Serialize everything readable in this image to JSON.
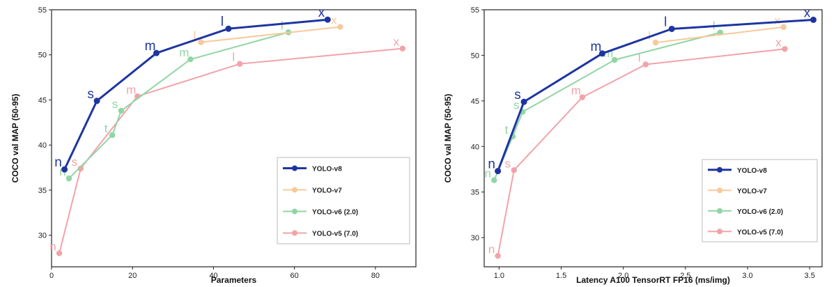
{
  "chart_data": [
    {
      "type": "line",
      "xlabel": "Parameters",
      "ylabel": "COCO val MAP (50-95)",
      "xlim": [
        0,
        90
      ],
      "ylim": [
        26.5,
        55
      ],
      "xticks": [
        "0",
        "20",
        "40",
        "60",
        "80"
      ],
      "yticks": [
        "30",
        "35",
        "40",
        "45",
        "50",
        "55"
      ],
      "grid": false,
      "legend": "bottom-right",
      "series": [
        {
          "name": "YOLO-v5 (7.0)",
          "color": "#F2A3A8",
          "x": [
            1.9,
            7.2,
            21.2,
            46.5,
            86.7
          ],
          "y": [
            28.0,
            37.4,
            45.4,
            49.0,
            50.7
          ],
          "labels": [
            "n",
            "s",
            "m",
            "l",
            "x"
          ]
        },
        {
          "name": "YOLO-v6 (2.0)",
          "color": "#90D6A4",
          "x": [
            4.3,
            15.0,
            17.2,
            34.3,
            58.5
          ],
          "y": [
            36.3,
            41.1,
            43.8,
            49.5,
            52.5
          ],
          "labels": [
            "n",
            "t",
            "s",
            "m",
            "l"
          ]
        },
        {
          "name": "YOLO-v7",
          "color": "#F8C99A",
          "x": [
            36.9,
            71.3
          ],
          "y": [
            51.4,
            53.1
          ],
          "labels": [
            "l",
            "x"
          ]
        },
        {
          "name": "YOLO-v8",
          "color": "#1E35A0",
          "x": [
            3.2,
            11.2,
            25.9,
            43.7,
            68.2
          ],
          "y": [
            37.3,
            44.9,
            50.2,
            52.9,
            53.9
          ],
          "labels": [
            "n",
            "s",
            "m",
            "l",
            "x"
          ]
        }
      ]
    },
    {
      "type": "line",
      "xlabel": "Latency A100 TensorRT FP16 (ms/img)",
      "ylabel": "COCO val MAP (50-95)",
      "xlim": [
        0.88,
        3.6
      ],
      "ylim": [
        26.8,
        55
      ],
      "xticks": [
        "1.0",
        "1.5",
        "2.0",
        "2.5",
        "3.0",
        "3.5"
      ],
      "yticks": [
        "30",
        "35",
        "40",
        "45",
        "50",
        "55"
      ],
      "grid": false,
      "legend": "bottom-right",
      "series": [
        {
          "name": "YOLO-v5 (7.0)",
          "color": "#F2A3A8",
          "x": [
            0.99,
            1.12,
            1.67,
            2.18,
            3.3
          ],
          "y": [
            28.0,
            37.4,
            45.4,
            49.0,
            50.7
          ],
          "labels": [
            "n",
            "s",
            "m",
            "l",
            "x"
          ]
        },
        {
          "name": "YOLO-v6 (2.0)",
          "color": "#90D6A4",
          "x": [
            0.96,
            1.11,
            1.19,
            1.93,
            2.78
          ],
          "y": [
            36.3,
            41.1,
            43.8,
            49.5,
            52.5
          ],
          "labels": [
            "n",
            "t",
            "s",
            "m",
            "l"
          ]
        },
        {
          "name": "YOLO-v7",
          "color": "#F8C99A",
          "x": [
            2.26,
            3.29
          ],
          "y": [
            51.4,
            53.1
          ],
          "labels": [
            "l",
            "x"
          ]
        },
        {
          "name": "YOLO-v8",
          "color": "#1E35A0",
          "x": [
            0.99,
            1.2,
            1.83,
            2.39,
            3.53
          ],
          "y": [
            37.3,
            44.9,
            50.2,
            52.9,
            53.9
          ],
          "labels": [
            "n",
            "s",
            "m",
            "l",
            "x"
          ]
        }
      ]
    }
  ],
  "legend_order": [
    "YOLO-v8",
    "YOLO-v7",
    "YOLO-v6 (2.0)",
    "YOLO-v5 (7.0)"
  ]
}
